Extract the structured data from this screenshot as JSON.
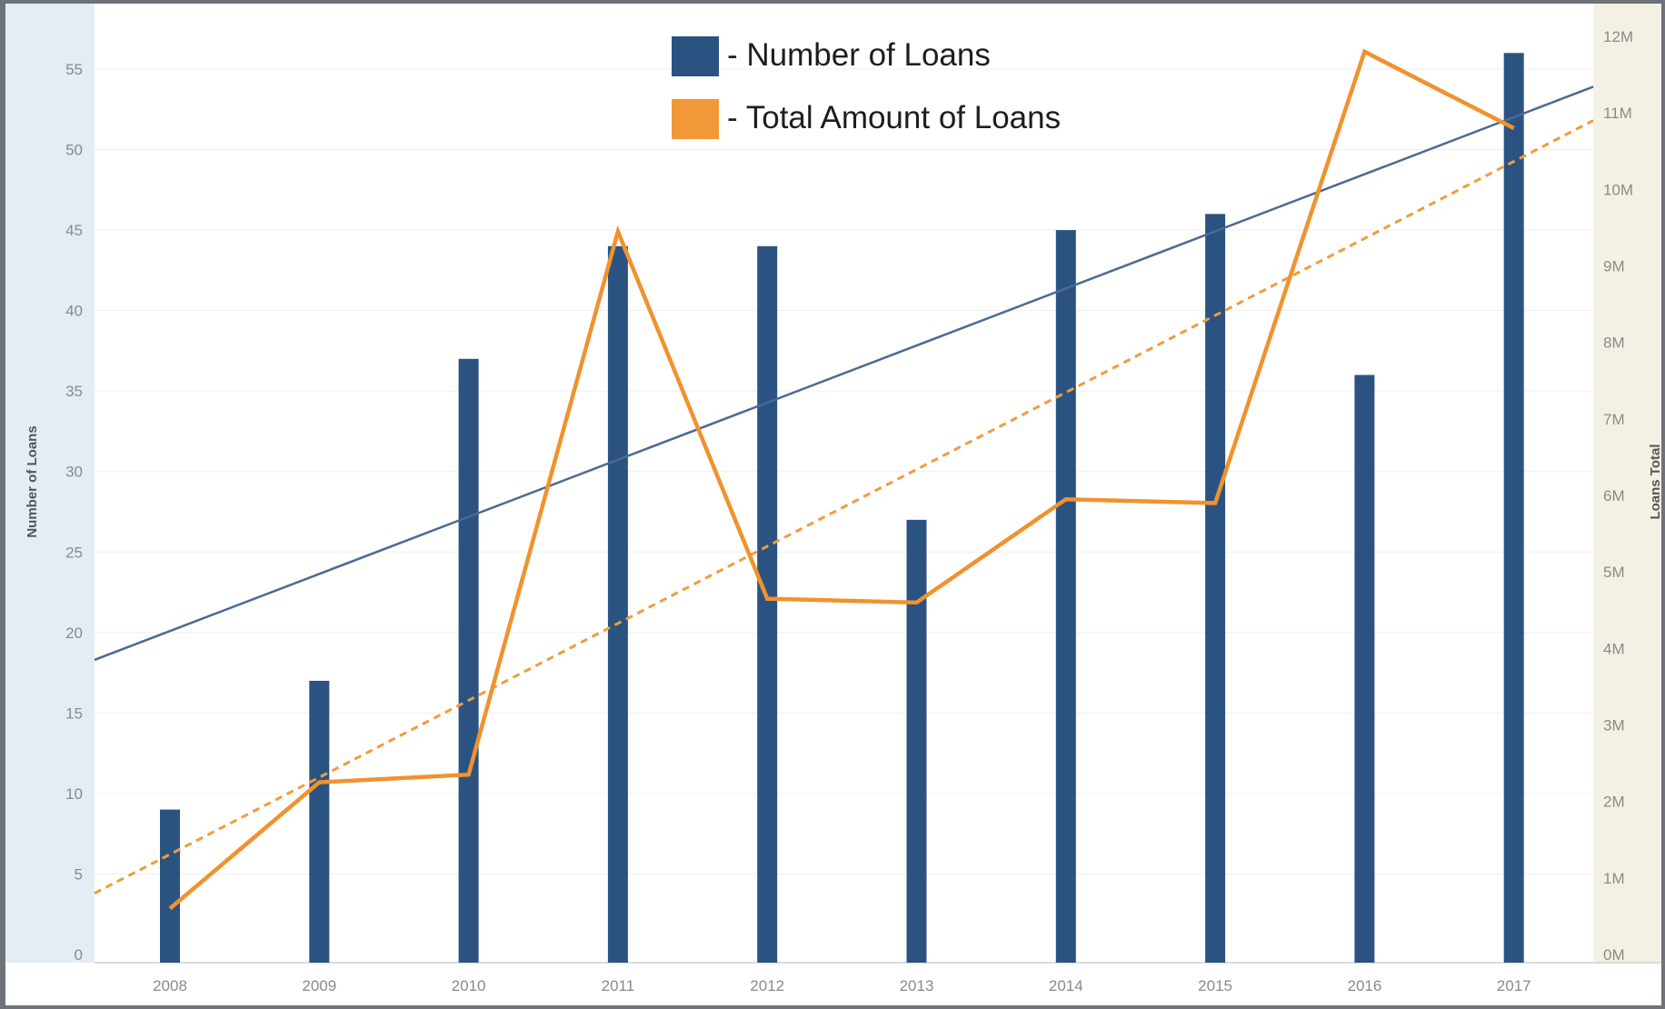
{
  "chart_data": {
    "type": "bar",
    "categories": [
      "2008",
      "2009",
      "2010",
      "2011",
      "2012",
      "2013",
      "2014",
      "2015",
      "2016",
      "2017"
    ],
    "series": [
      {
        "name": "- Number of Loans",
        "kind": "bar",
        "axis": "left",
        "values": [
          9,
          17,
          37,
          44,
          44,
          27,
          45,
          46,
          36,
          56
        ]
      },
      {
        "name": "- Total Amount of Loans",
        "kind": "line",
        "axis": "right",
        "values": [
          0.6,
          2.25,
          2.35,
          9.45,
          4.65,
          4.6,
          5.95,
          5.9,
          11.8,
          10.8
        ]
      }
    ],
    "trendlines": [
      {
        "series": "- Number of Loans",
        "style": "solid",
        "color": "#4a6a93",
        "start": 18.3,
        "end": 53.9
      },
      {
        "series": "- Total Amount of Loans",
        "style": "dashed",
        "color": "#f29b3c",
        "start": 0.8,
        "end": 10.9
      }
    ],
    "y_left": {
      "label": "Number of Loans",
      "ticks": [
        "0",
        "5",
        "10",
        "15",
        "20",
        "25",
        "30",
        "35",
        "40",
        "45",
        "50",
        "55"
      ],
      "ylim": [
        0,
        57.5
      ]
    },
    "y_right": {
      "label": "Loans Total",
      "ticks": [
        "0M",
        "1M",
        "2M",
        "3M",
        "4M",
        "5M",
        "6M",
        "7M",
        "8M",
        "9M",
        "10M",
        "11M",
        "12M"
      ],
      "ylim": [
        0,
        12.3
      ]
    },
    "legend": {
      "position": "top-center"
    },
    "grid": true
  },
  "colors": {
    "bar": "#2b5382",
    "line": "#f0922e",
    "left_panel": "#e4edf4",
    "right_panel": "#f4f1e4"
  }
}
